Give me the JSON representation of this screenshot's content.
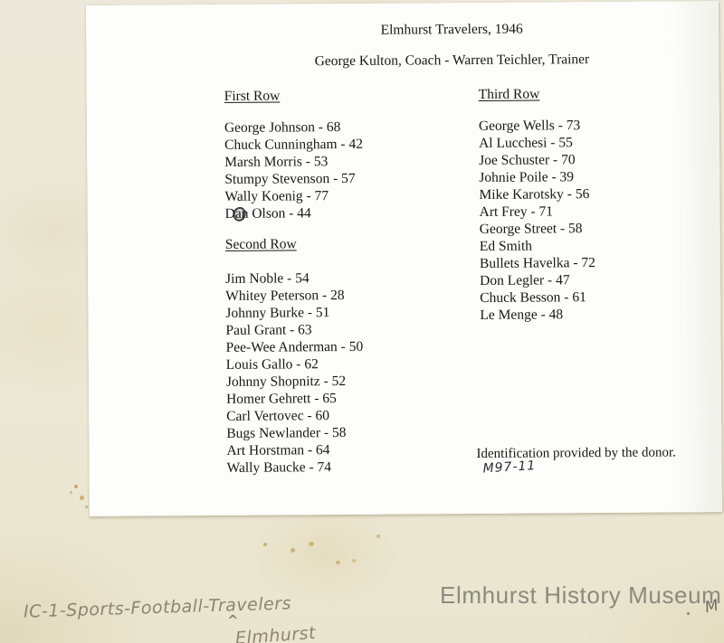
{
  "document": {
    "title": "Elmhurst Travelers, 1946",
    "subtitle": "George Kulton, Coach - Warren Teichler, Trainer",
    "first_row": {
      "heading": "First Row",
      "players": [
        "George Johnson - 68",
        "Chuck Cunningham - 42",
        "Marsh Morris - 53",
        "Stumpy Stevenson - 57",
        "Wally Koenig - 77",
        "Dan Olson - 44"
      ]
    },
    "second_row": {
      "heading": "Second Row",
      "players": [
        "Jim Noble - 54",
        "Whitey Peterson - 28",
        "Johnny Burke - 51",
        "Paul Grant - 63",
        "Pee-Wee Anderman - 50",
        "Louis Gallo - 62",
        "Johnny Shopnitz - 52",
        "Homer Gehrett - 65",
        "Carl Vertovec - 60",
        "Bugs Newlander - 58",
        "Art Horstman - 64",
        "Wally Baucke - 74"
      ]
    },
    "third_row": {
      "heading": "Third Row",
      "players": [
        "George Wells - 73",
        "Al Lucchesi - 55",
        "Joe Schuster - 70",
        "Johnie Poile - 39",
        "Mike Karotsky - 56",
        "Art Frey - 71",
        "George Street - 58",
        "Ed Smith",
        "Bullets Havelka - 72",
        "Don Legler - 47",
        "Chuck Besson - 61",
        "Le Menge - 48"
      ]
    },
    "donor_note": "Identification provided by the donor.",
    "accession_number": "M97-11"
  },
  "annotations": {
    "catalog_line": "IC-1-Sports-Football-Travelers",
    "caret": "^",
    "insertion": "Elmhurst",
    "corner_mark": "M"
  },
  "watermark": {
    "text": "Elmhurst History Museum",
    "color": "#7a7a71"
  },
  "colors": {
    "backing_paper": "#ece8d6",
    "sheet_paper": "#fdfdfb",
    "typed_ink": "#171717",
    "pencil": "#8d8472",
    "foxing": "#c09a50"
  }
}
